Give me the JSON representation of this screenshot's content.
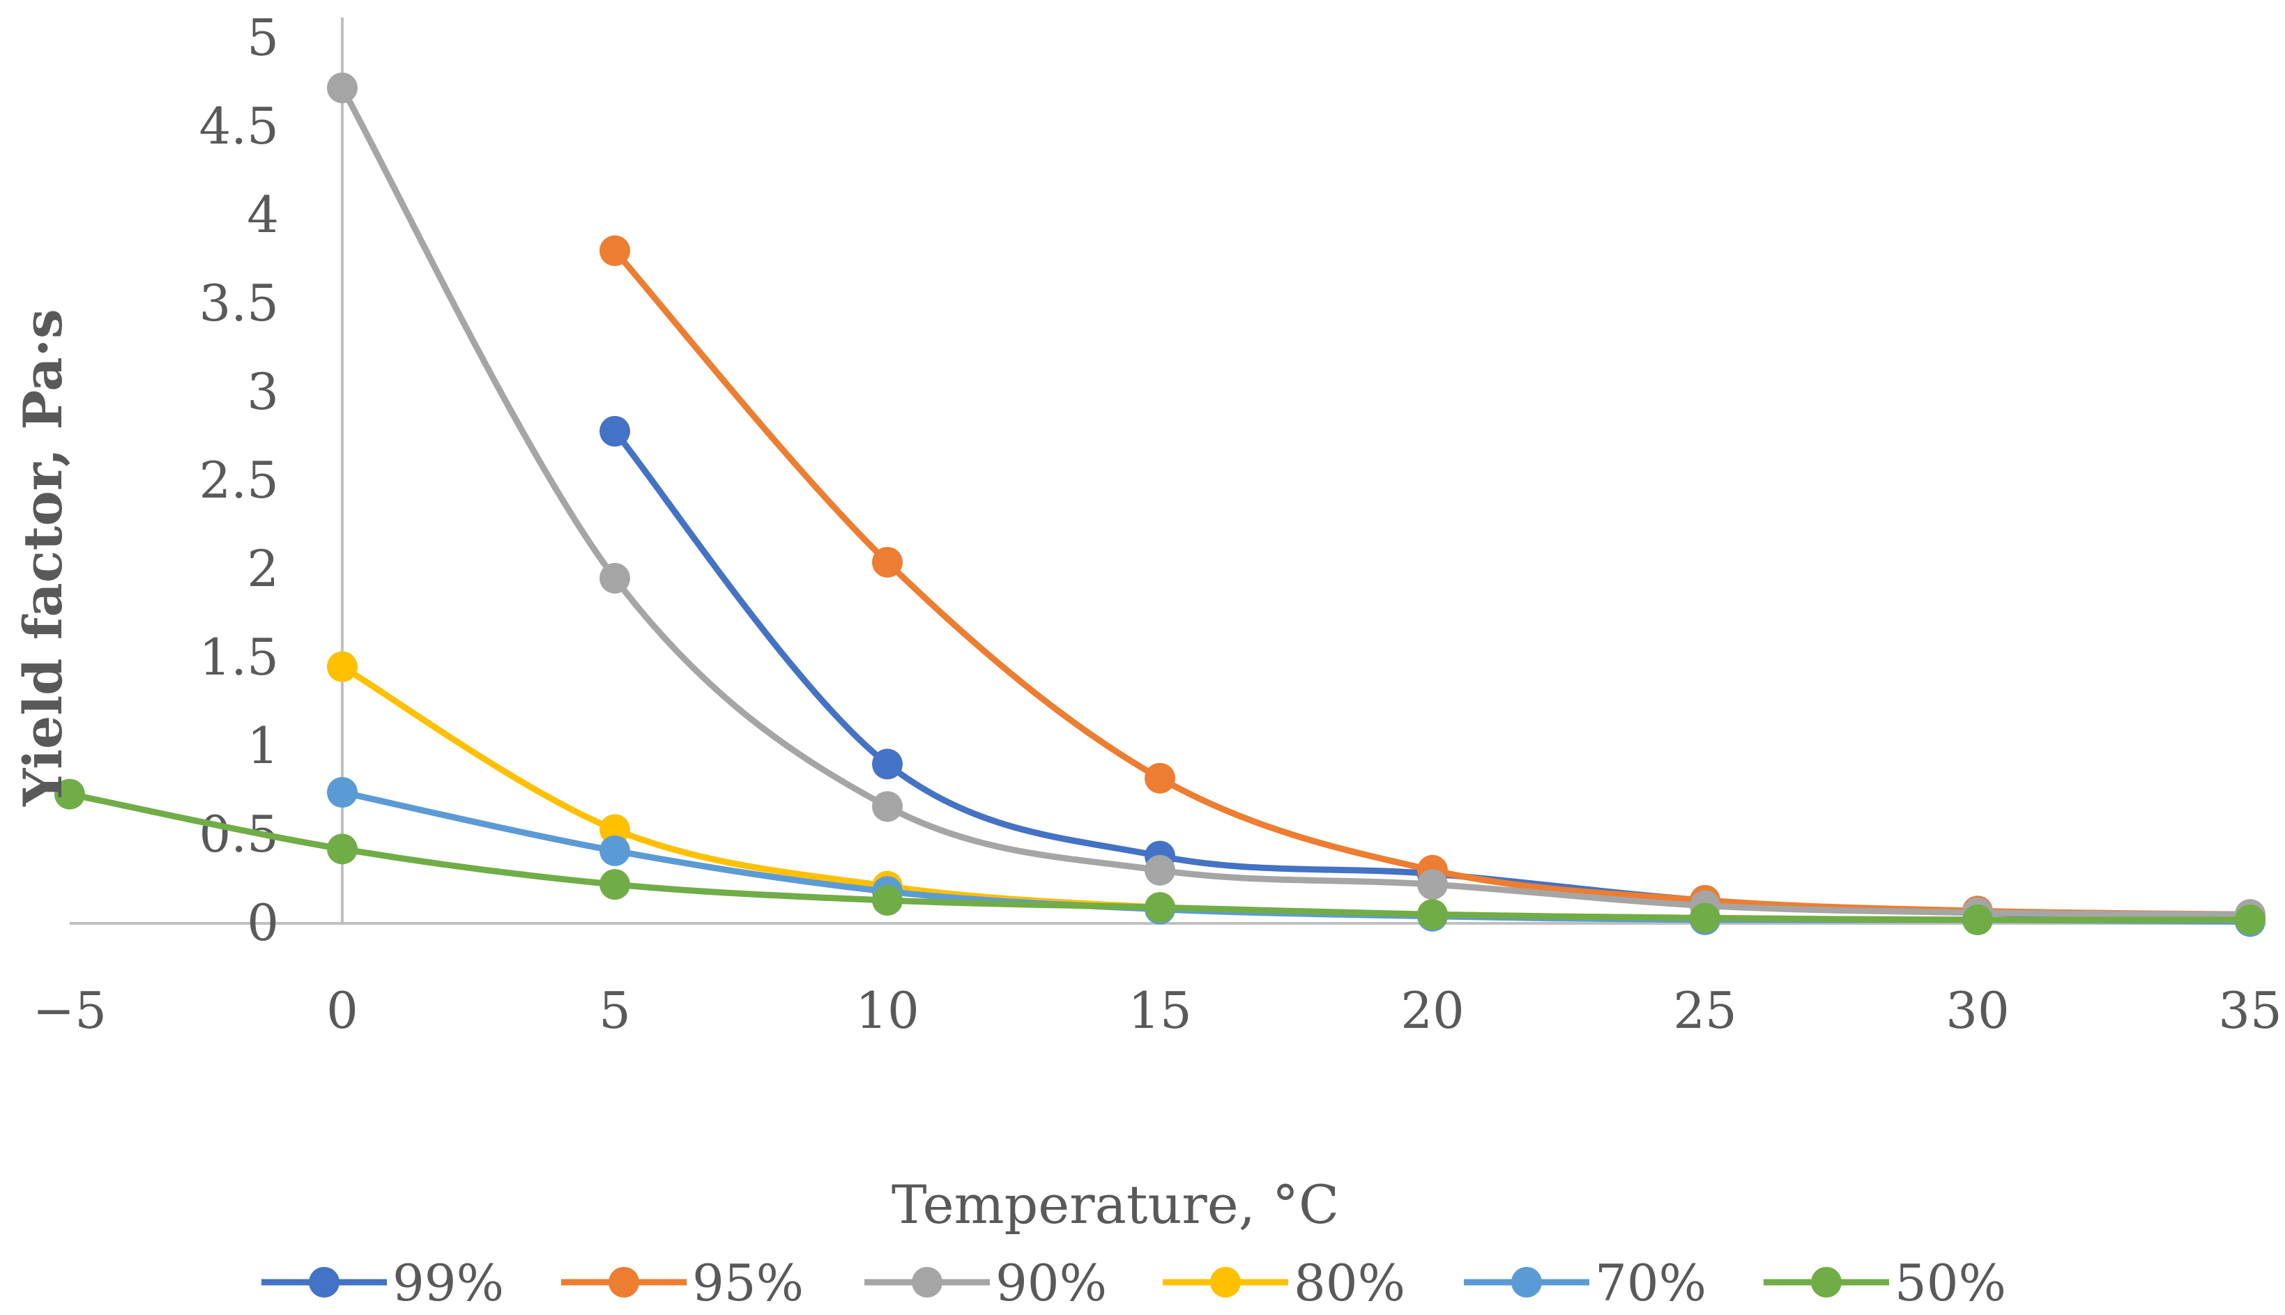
{
  "chart_data": {
    "type": "line",
    "title": "",
    "xlabel": "Temperature, °C",
    "ylabel": "Yield factor, Pa·s",
    "xlim": [
      -5,
      35
    ],
    "ylim": [
      0,
      5
    ],
    "x_ticks": [
      "−5",
      "0",
      "5",
      "10",
      "15",
      "20",
      "25",
      "30",
      "35"
    ],
    "y_ticks": [
      "0",
      "0.5",
      "1",
      "1.5",
      "2",
      "2.5",
      "3",
      "3.5",
      "4",
      "4.5",
      "5"
    ],
    "grid": false,
    "legend_position": "bottom",
    "series": [
      {
        "name": "99%",
        "color": "#4472C4",
        "x": [
          5,
          10,
          15,
          20,
          25,
          30,
          35
        ],
        "y": [
          2.78,
          0.9,
          0.38,
          0.28,
          0.13,
          0.06,
          0.04
        ]
      },
      {
        "name": "95%",
        "color": "#ED7D31",
        "x": [
          5,
          10,
          15,
          20,
          25,
          30,
          35
        ],
        "y": [
          3.8,
          2.04,
          0.82,
          0.3,
          0.13,
          0.07,
          0.05
        ]
      },
      {
        "name": "90%",
        "color": "#A5A5A5",
        "x": [
          0,
          5,
          10,
          15,
          20,
          25,
          30,
          35
        ],
        "y": [
          4.72,
          1.95,
          0.66,
          0.3,
          0.22,
          0.1,
          0.06,
          0.05
        ]
      },
      {
        "name": "80%",
        "color": "#FFC000",
        "x": [
          0,
          5,
          10,
          15,
          20,
          25,
          30,
          35
        ],
        "y": [
          1.45,
          0.53,
          0.21,
          0.09,
          0.05,
          0.03,
          0.02,
          0.02
        ]
      },
      {
        "name": "70%",
        "color": "#5B9BD5",
        "x": [
          0,
          5,
          10,
          15,
          20,
          25,
          30,
          35
        ],
        "y": [
          0.74,
          0.41,
          0.18,
          0.08,
          0.04,
          0.02,
          0.02,
          0.01
        ]
      },
      {
        "name": "50%",
        "color": "#70AD47",
        "x": [
          -5,
          0,
          5,
          10,
          15,
          20,
          25,
          30,
          35
        ],
        "y": [
          0.73,
          0.42,
          0.22,
          0.13,
          0.09,
          0.05,
          0.03,
          0.02,
          0.02
        ]
      }
    ]
  }
}
